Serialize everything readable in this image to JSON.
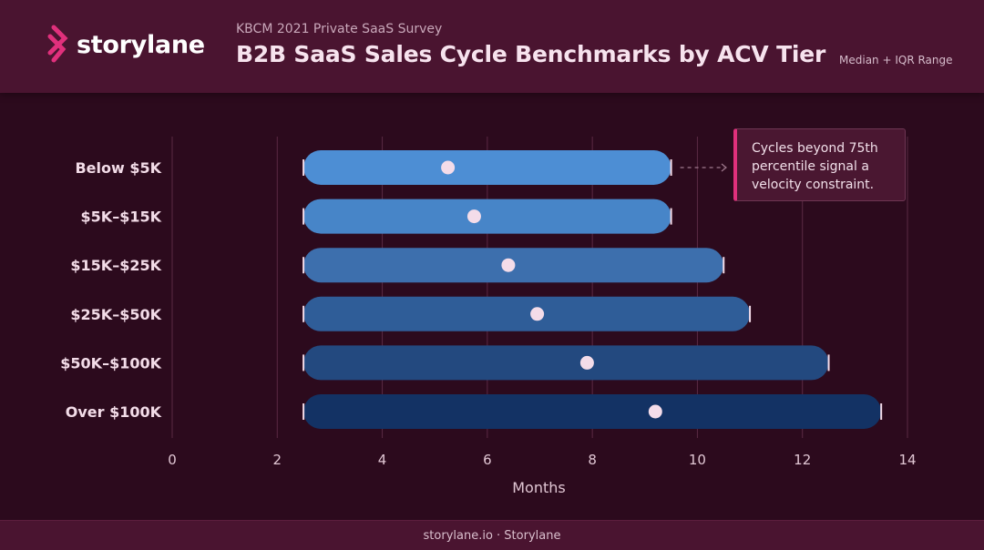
{
  "brand": {
    "name": "storylane",
    "mark_color": "#e0307c"
  },
  "header": {
    "supertitle": "KBCM 2021 Private SaaS Survey",
    "title": "B2B SaaS Sales Cycle Benchmarks by ACV Tier",
    "subtitle": "Median + IQR Range"
  },
  "annotation": {
    "text": "Cycles beyond 75th percentile signal a velocity constraint.",
    "accent": "#e0307c"
  },
  "footer": {
    "text": "storylane.io · Storylane"
  },
  "chart_data": {
    "type": "range-bar",
    "orientation": "horizontal",
    "categories": [
      "Below $5K",
      "$5K–$15K",
      "$15K–$25K",
      "$25K–$50K",
      "$50K–$100K",
      "Over $100K"
    ],
    "series": [
      {
        "low": [
          2.5,
          2.5,
          2.5,
          2.5,
          2.5,
          2.5
        ],
        "high": [
          9.5,
          9.5,
          10.5,
          11,
          12.5,
          13.5
        ],
        "median": [
          5.25,
          5.75,
          6.4,
          6.95,
          7.9,
          9.2
        ]
      }
    ],
    "bar_colors": [
      "#4d8ed4",
      "#4785c8",
      "#3d6fad",
      "#2f5d98",
      "#23497f",
      "#133264"
    ],
    "median_color": "#f4dce9",
    "xlabel": "Months",
    "ylabel": "",
    "xlim": [
      0,
      14
    ],
    "xticks": [
      "0",
      "2",
      "4",
      "6",
      "8",
      "10",
      "12",
      "14"
    ],
    "grid": true
  }
}
